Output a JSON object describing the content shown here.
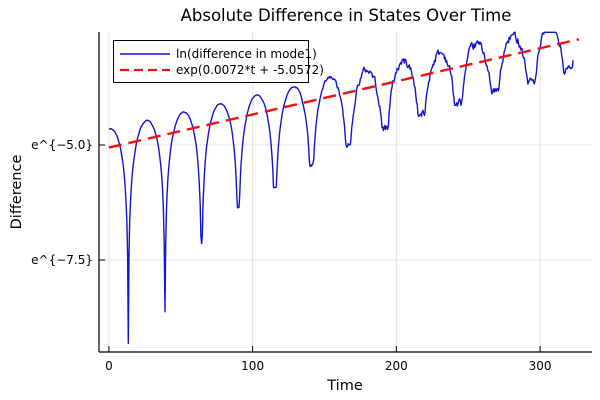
{
  "chart_data": {
    "type": "line",
    "title": "Absolute Difference in States Over Time",
    "xlabel": "Time",
    "ylabel": "Difference",
    "grid": true,
    "background": "#ffffff",
    "axis_color": "#000000",
    "grid_color": "#e4e4e4",
    "x_axis": {
      "range": [
        -7,
        336
      ],
      "ticks": [
        {
          "value": 0,
          "label": "0"
        },
        {
          "value": 100,
          "label": "100"
        },
        {
          "value": 200,
          "label": "200"
        },
        {
          "value": 300,
          "label": "300"
        }
      ]
    },
    "y_axis": {
      "scale": "log-e",
      "range_ln": [
        -9.5,
        -2.54
      ],
      "ticks": [
        {
          "value": -5.0,
          "label": "e^{−5.0}"
        },
        {
          "value": -7.5,
          "label": "e^{−7.5}"
        }
      ]
    },
    "legend": {
      "position": "top-left",
      "border_color": "#000000",
      "fill": "#ffffff"
    },
    "series": [
      {
        "name": "ln(difference in mode1)",
        "color": "#1313d2",
        "style": "solid",
        "line_width": 1.4,
        "model": {
          "kind": "log-abs-oscillation-with-exponential-envelope",
          "envelope_slope": 0.0072,
          "envelope_intercept": -5.0572,
          "envelope_offset": 0.4,
          "zero_start_t": 13.5,
          "zero_spacing_t": 25.5,
          "t_start": 0,
          "t_end": 323,
          "sample_step": 0.5,
          "dip_depths_below_fit": [
            4.35,
            3.85,
            2.55,
            1.95,
            1.7,
            1.4,
            1.15,
            0.95,
            0.85,
            0.8,
            0.72,
            0.66,
            0.62
          ],
          "noise_onset_t": 125,
          "noise_max_amp": 0.2,
          "noise_seed": 42
        }
      },
      {
        "name": "exp(0.0072*t + -5.0572)",
        "color": "#ee1111",
        "style": "dashed",
        "line_width": 2.4,
        "dash_pattern": "13 7",
        "model": {
          "kind": "linear-in-log",
          "slope": 0.0072,
          "intercept": -5.0572,
          "t_start": 0,
          "t_end": 327
        }
      }
    ]
  }
}
